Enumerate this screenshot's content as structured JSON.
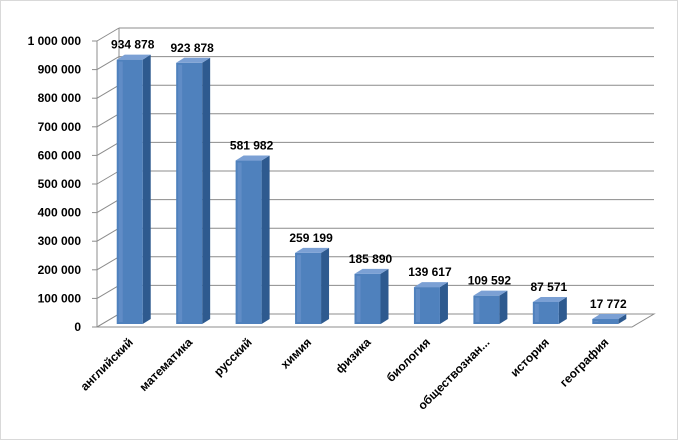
{
  "chart_data": {
    "type": "bar",
    "title": "",
    "xlabel": "",
    "ylabel": "",
    "categories": [
      "английский",
      "математика",
      "русский",
      "химия",
      "физика",
      "биология",
      "обществознан...",
      "история",
      "география"
    ],
    "values": [
      934878,
      923878,
      581982,
      259199,
      185890,
      139617,
      109592,
      87571,
      17772
    ],
    "value_labels": [
      "934 878",
      "923 878",
      "581 982",
      "259 199",
      "185 890",
      "139 617",
      "109 592",
      "87 571",
      "17 772"
    ],
    "ylim": [
      0,
      1000000
    ],
    "yticks": [
      0,
      100000,
      200000,
      300000,
      400000,
      500000,
      600000,
      700000,
      800000,
      900000,
      1000000
    ],
    "ytick_labels": [
      "0",
      "100 000",
      "200 000",
      "300 000",
      "400 000",
      "500 000",
      "600 000",
      "700 000",
      "800 000",
      "900 000",
      "1 000 000"
    ],
    "grid": true,
    "legend": "none",
    "style": "3d-column",
    "colors": {
      "bar_front": "#4F81BD",
      "bar_side": "#2E5A8F",
      "bar_top": "#7BA0D4",
      "gridline": "#8c8c8c",
      "wall": "#ffffff",
      "floor_edge": "#8c8c8c"
    }
  }
}
